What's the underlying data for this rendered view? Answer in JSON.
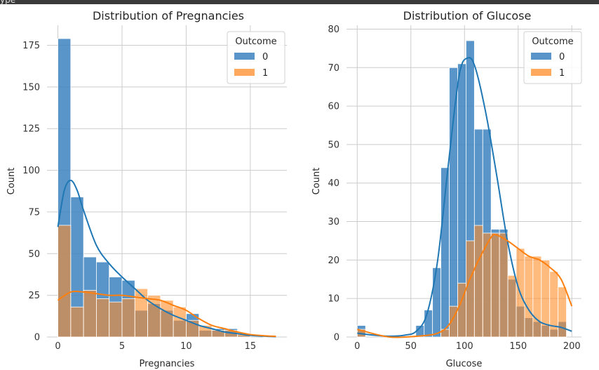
{
  "topbar": {
    "text": "ype"
  },
  "colors": {
    "outcome0": "#3c83be",
    "outcome1": "#ff8c28",
    "overlap": "#5f7582",
    "grid": "#cccccc",
    "kde0": "#1f77b4",
    "kde1": "#ff7f0e"
  },
  "chart_data": [
    {
      "type": "bar",
      "subtype": "overlaid-histogram-with-kde",
      "title": "Distribution of Pregnancies",
      "xlabel": "Pregnancies",
      "ylabel": "Count",
      "xlim": [
        -0.85,
        17.85
      ],
      "ylim": [
        0,
        187
      ],
      "xticks": [
        0,
        5,
        10,
        15
      ],
      "yticks": [
        0,
        25,
        50,
        75,
        100,
        125,
        150,
        175
      ],
      "grid": true,
      "legend": {
        "title": "Outcome",
        "position": "top-right",
        "entries": [
          "0",
          "1"
        ]
      },
      "bin_edges": [
        0,
        1,
        2,
        3,
        4,
        5,
        6,
        7,
        8,
        9,
        10,
        11,
        12,
        13,
        14,
        15,
        16,
        17
      ],
      "series": [
        {
          "name": "0",
          "values": [
            179,
            84,
            48,
            45,
            36,
            34,
            16,
            20,
            16,
            10,
            14,
            4,
            5,
            5,
            1,
            0,
            0
          ]
        },
        {
          "name": "1",
          "values": [
            67,
            18,
            28,
            23,
            21,
            23,
            29,
            25,
            22,
            18,
            10,
            7,
            4,
            4,
            2,
            0,
            1
          ]
        }
      ],
      "kde": [
        {
          "name": "0",
          "x": [
            0,
            0.5,
            1,
            1.5,
            2,
            3,
            4,
            5,
            6,
            7,
            8,
            9,
            10,
            11,
            12,
            13,
            14,
            15,
            16,
            17
          ],
          "y": [
            66,
            88,
            94,
            88,
            76,
            55,
            44,
            36,
            29,
            22,
            17,
            13,
            10,
            7,
            5,
            3,
            2,
            1,
            0.5,
            0.2
          ]
        },
        {
          "name": "1",
          "x": [
            0,
            1,
            2,
            3,
            4,
            5,
            6,
            7,
            8,
            9,
            10,
            11,
            12,
            13,
            14,
            15,
            16,
            17
          ],
          "y": [
            22,
            27,
            27,
            26,
            25,
            25,
            24,
            23,
            22,
            19,
            16,
            11,
            7,
            5,
            3,
            1.5,
            0.8,
            0.4
          ]
        }
      ]
    },
    {
      "type": "bar",
      "subtype": "overlaid-histogram-with-kde",
      "title": "Distribution of Glucose",
      "xlabel": "Glucose",
      "ylabel": "Count",
      "xlim": [
        -10,
        209
      ],
      "ylim": [
        0,
        81
      ],
      "xticks": [
        0,
        50,
        100,
        150,
        200
      ],
      "yticks": [
        0,
        10,
        20,
        30,
        40,
        50,
        60,
        70,
        80
      ],
      "grid": true,
      "legend": {
        "title": "Outcome",
        "position": "top-right",
        "entries": [
          "0",
          "1"
        ]
      },
      "bin_edges": [
        0,
        7.8,
        15.6,
        23.4,
        31.2,
        39,
        46.8,
        54.6,
        62.4,
        70.2,
        78,
        85.8,
        93.6,
        101.4,
        109.2,
        117,
        124.8,
        132.6,
        140.4,
        148.2,
        156,
        163.8,
        171.6,
        179.4,
        187.2,
        195,
        199
      ],
      "series": [
        {
          "name": "0",
          "values": [
            3,
            0,
            0,
            0,
            0,
            0,
            0,
            3,
            7,
            18,
            44,
            70,
            71,
            77,
            54,
            54,
            28,
            28,
            15,
            8,
            5,
            4,
            3,
            2,
            4,
            0
          ]
        },
        {
          "name": "1",
          "values": [
            2,
            0,
            0,
            0,
            0,
            0,
            0,
            0,
            0,
            0,
            2,
            8,
            14,
            25,
            29,
            27,
            27,
            27,
            16,
            23,
            21,
            21,
            20,
            17,
            13,
            0
          ]
        }
      ],
      "kde": [
        {
          "name": "0",
          "x": [
            0,
            15,
            30,
            45,
            55,
            65,
            75,
            85,
            95,
            103,
            110,
            120,
            130,
            140,
            150,
            160,
            170,
            180,
            190,
            200
          ],
          "y": [
            1,
            0.5,
            0.2,
            0.5,
            1.5,
            6,
            20,
            45,
            68,
            72.5,
            70,
            58,
            42,
            25,
            13,
            7,
            4,
            3,
            2.5,
            1.5
          ]
        },
        {
          "name": "1",
          "x": [
            0,
            30,
            60,
            75,
            85,
            95,
            105,
            115,
            125,
            130,
            140,
            150,
            160,
            170,
            180,
            190,
            200
          ],
          "y": [
            2,
            0,
            0.3,
            1,
            3,
            8,
            15,
            21,
            26,
            26.5,
            25,
            23,
            21,
            20,
            18,
            15,
            8
          ]
        }
      ]
    }
  ]
}
